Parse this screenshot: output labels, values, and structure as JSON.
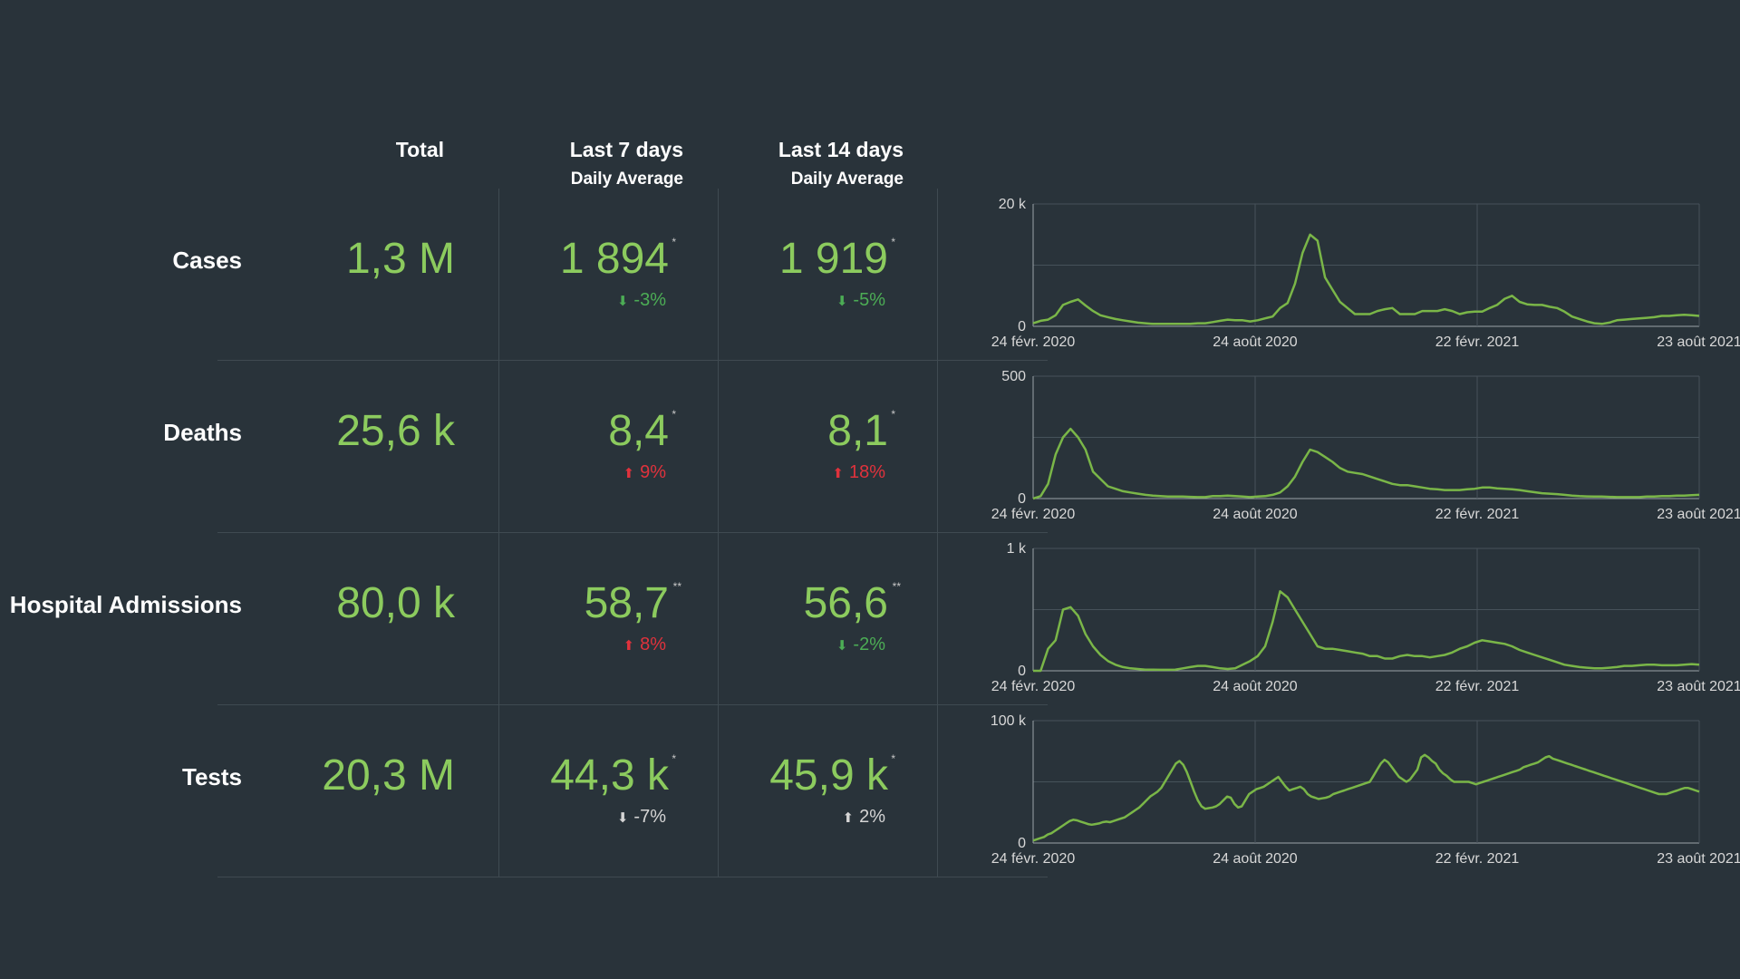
{
  "headers": {
    "total": "Total",
    "last7": "Last 7 days",
    "last7_sub": "Daily Average",
    "last14": "Last 14 days",
    "last14_sub": "Daily Average"
  },
  "colors": {
    "background": "#29333a",
    "value_green": "#8ccb5e",
    "line_green": "#7ab648",
    "down_green": "#4cad55",
    "up_red": "#e0323c",
    "neutral": "#d5d5d5"
  },
  "rows": [
    {
      "label": "Cases",
      "total": "1,3 M",
      "avg7": "1 894",
      "avg7_mark": "*",
      "chg7": "-3%",
      "chg7_dir": "down",
      "chg7_icon": "arrow-down-icon",
      "avg14": "1 919",
      "avg14_mark": "*",
      "chg14": "-5%",
      "chg14_dir": "down",
      "chg14_icon": "arrow-down-icon"
    },
    {
      "label": "Deaths",
      "total": "25,6 k",
      "avg7": "8,4",
      "avg7_mark": "*",
      "chg7": "9%",
      "chg7_dir": "up",
      "chg7_icon": "arrow-up-icon",
      "avg14": "8,1",
      "avg14_mark": "*",
      "chg14": "18%",
      "chg14_dir": "up",
      "chg14_icon": "arrow-up-icon"
    },
    {
      "label": "Hospital Admissions",
      "total": "80,0 k",
      "avg7": "58,7",
      "avg7_mark": "**",
      "chg7": "8%",
      "chg7_dir": "up",
      "chg7_icon": "arrow-up-icon",
      "avg14": "56,6",
      "avg14_mark": "**",
      "chg14": "-2%",
      "chg14_dir": "down",
      "chg14_icon": "arrow-down-icon"
    },
    {
      "label": "Tests",
      "total": "20,3 M",
      "avg7": "44,3 k",
      "avg7_mark": "*",
      "chg7": "-7%",
      "chg7_dir": "neutral",
      "chg7_icon": "arrow-down-icon",
      "avg14": "45,9 k",
      "avg14_mark": "*",
      "chg14": "2%",
      "chg14_dir": "neutral",
      "chg14_icon": "arrow-up-icon"
    }
  ],
  "chart_data": [
    {
      "type": "line",
      "series": [
        {
          "name": "",
          "values": [
            500,
            900,
            1100,
            1800,
            3500,
            4000,
            4400,
            3400,
            2500,
            1800,
            1500,
            1200,
            1000,
            800,
            600,
            500,
            400,
            400,
            400,
            400,
            400,
            400,
            500,
            500,
            700,
            900,
            1100,
            1000,
            1000,
            800,
            1000,
            1300,
            1600,
            3000,
            3800,
            7000,
            12000,
            15000,
            14000,
            8000,
            6000,
            4000,
            3000,
            2000,
            2000,
            2000,
            2500,
            2800,
            3000,
            2000,
            2000,
            2000,
            2500,
            2500,
            2500,
            2800,
            2500,
            2000,
            2300,
            2400,
            2400,
            3000,
            3500,
            4500,
            5000,
            4000,
            3600,
            3500,
            3500,
            3200,
            3000,
            2400,
            1600,
            1200,
            800,
            500,
            400,
            600,
            1000,
            1100,
            1200,
            1300,
            1400,
            1500,
            1700,
            1700,
            1800,
            1900,
            1800,
            1700
          ]
        }
      ],
      "x_start": "24 févr. 2020",
      "x_end": "23 août 2021",
      "xticks": [
        "24 févr. 2020",
        "24 août 2020",
        "22 févr. 2021",
        "23 août 2021"
      ],
      "yticks": [
        "0",
        "20 k"
      ],
      "ylim": [
        0,
        20000
      ]
    },
    {
      "type": "line",
      "series": [
        {
          "name": "",
          "values": [
            0,
            10,
            60,
            180,
            250,
            285,
            250,
            200,
            110,
            80,
            50,
            40,
            30,
            25,
            20,
            15,
            12,
            10,
            8,
            8,
            8,
            7,
            6,
            6,
            10,
            10,
            12,
            10,
            8,
            6,
            8,
            10,
            15,
            25,
            50,
            90,
            150,
            200,
            190,
            170,
            150,
            125,
            110,
            105,
            100,
            90,
            80,
            70,
            60,
            55,
            55,
            50,
            45,
            40,
            38,
            35,
            35,
            35,
            38,
            40,
            45,
            45,
            42,
            40,
            38,
            35,
            30,
            26,
            22,
            20,
            18,
            15,
            12,
            10,
            9,
            8,
            8,
            7,
            6,
            6,
            6,
            6,
            8,
            8,
            10,
            10,
            12,
            12,
            14,
            15
          ]
        }
      ],
      "x_start": "24 févr. 2020",
      "x_end": "23 août 2021",
      "xticks": [
        "24 févr. 2020",
        "24 août 2020",
        "22 févr. 2021",
        "23 août 2021"
      ],
      "yticks": [
        "0",
        "500"
      ],
      "ylim": [
        0,
        500
      ]
    },
    {
      "type": "line",
      "series": [
        {
          "name": "",
          "values": [
            0,
            0,
            180,
            250,
            500,
            520,
            450,
            300,
            200,
            130,
            80,
            50,
            30,
            20,
            15,
            10,
            10,
            8,
            8,
            10,
            20,
            30,
            40,
            40,
            30,
            20,
            15,
            20,
            50,
            80,
            120,
            200,
            400,
            650,
            600,
            500,
            400,
            300,
            200,
            180,
            180,
            170,
            160,
            150,
            140,
            120,
            120,
            100,
            100,
            120,
            130,
            120,
            120,
            110,
            120,
            130,
            150,
            180,
            200,
            230,
            250,
            240,
            230,
            220,
            200,
            170,
            150,
            130,
            110,
            90,
            70,
            50,
            40,
            30,
            25,
            20,
            20,
            25,
            30,
            40,
            40,
            45,
            50,
            50,
            45,
            45,
            45,
            50,
            55,
            50
          ]
        }
      ],
      "x_start": "24 févr. 2020",
      "x_end": "23 août 2021",
      "xticks": [
        "24 févr. 2020",
        "24 août 2020",
        "22 févr. 2021",
        "23 août 2021"
      ],
      "yticks": [
        "0",
        "1 k"
      ],
      "ylim": [
        0,
        1000
      ]
    },
    {
      "type": "line",
      "series": [
        {
          "name": "",
          "values": [
            2000,
            3000,
            4000,
            5000,
            7000,
            8000,
            10000,
            12000,
            14000,
            16000,
            18000,
            19000,
            18500,
            17500,
            16500,
            15500,
            15000,
            15500,
            16000,
            17000,
            17500,
            17000,
            18000,
            19000,
            20000,
            21000,
            23000,
            25000,
            27000,
            29000,
            32000,
            35000,
            38000,
            40000,
            42000,
            45000,
            50000,
            55000,
            60000,
            65000,
            67000,
            64000,
            58000,
            50000,
            42000,
            35000,
            30000,
            28000,
            28500,
            29000,
            30000,
            32000,
            35000,
            38000,
            37000,
            32000,
            29000,
            30000,
            35000,
            40000,
            42000,
            44000,
            45000,
            46000,
            48000,
            50000,
            52000,
            54000,
            50000,
            46000,
            43000,
            44000,
            45000,
            46000,
            44000,
            40000,
            38000,
            37000,
            36000,
            36500,
            37000,
            38000,
            40000,
            41000,
            42000,
            43000,
            44000,
            45000,
            46000,
            47000,
            48000,
            49000,
            50000,
            55000,
            60000,
            65000,
            68000,
            66000,
            62000,
            58000,
            54000,
            52000,
            50000,
            52000,
            56000,
            60000,
            70000,
            72000,
            70000,
            67000,
            65000,
            60000,
            57000,
            55000,
            52000,
            50000,
            50000,
            50000,
            50000,
            50000,
            49000,
            48000,
            49000,
            50000,
            51000,
            52000,
            53000,
            54000,
            55000,
            56000,
            57000,
            58000,
            59000,
            60000,
            62000,
            63000,
            64000,
            65000,
            66000,
            68000,
            70000,
            71000,
            69000,
            68000,
            67000,
            66000,
            65000,
            64000,
            63000,
            62000,
            61000,
            60000,
            59000,
            58000,
            57000,
            56000,
            55000,
            54000,
            53000,
            52000,
            51000,
            50000,
            49000,
            48000,
            47000,
            46000,
            45000,
            44000,
            43000,
            42000,
            41000,
            40000,
            40000,
            40000,
            41000,
            42000,
            43000,
            44000,
            45000,
            45000,
            44000,
            43000,
            42000
          ]
        }
      ],
      "x_start": "24 févr. 2020",
      "x_end": "23 août 2021",
      "xticks": [
        "24 févr. 2020",
        "24 août 2020",
        "22 févr. 2021",
        "23 août 2021"
      ],
      "yticks": [
        "0",
        "100 k"
      ],
      "ylim": [
        0,
        100000
      ]
    }
  ]
}
